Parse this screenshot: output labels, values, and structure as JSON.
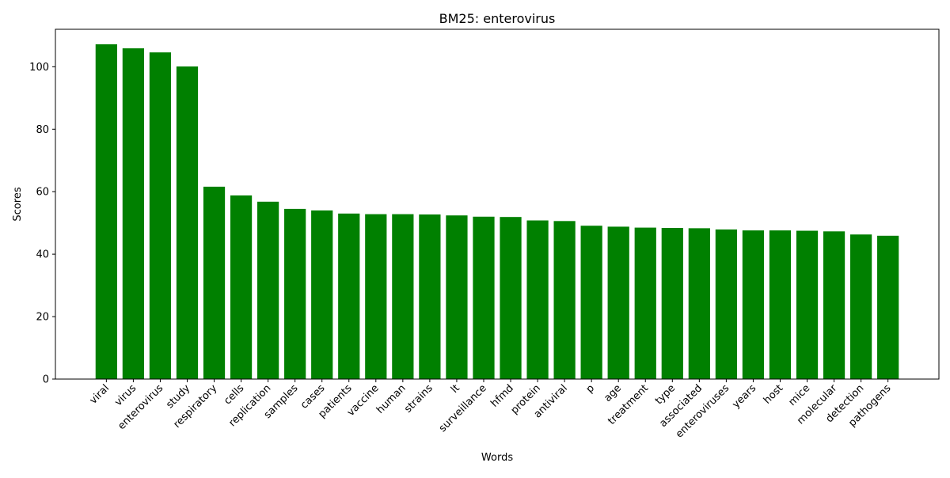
{
  "chart_data": {
    "type": "bar",
    "title": "BM25: enterovirus",
    "xlabel": "Words",
    "ylabel": "Scores",
    "ylim": [
      0,
      112
    ],
    "yticks": [
      0,
      20,
      40,
      60,
      80,
      100
    ],
    "categories": [
      "viral",
      "virus",
      "enterovirus",
      "study",
      "respiratory",
      "cells",
      "replication",
      "samples",
      "cases",
      "patients",
      "vaccine",
      "human",
      "strains",
      "lt",
      "surveillance",
      "hfmd",
      "protein",
      "antiviral",
      "p",
      "age",
      "treatment",
      "type",
      "associated",
      "enteroviruses",
      "years",
      "host",
      "mice",
      "molecular",
      "detection",
      "pathogens"
    ],
    "values": [
      107.2,
      105.9,
      104.6,
      100.1,
      61.6,
      58.8,
      56.8,
      54.5,
      54.0,
      53.0,
      52.8,
      52.8,
      52.7,
      52.4,
      52.0,
      51.9,
      50.8,
      50.6,
      49.1,
      48.8,
      48.5,
      48.4,
      48.3,
      47.9,
      47.6,
      47.6,
      47.5,
      47.3,
      46.3,
      45.9
    ],
    "bar_color": "#008000",
    "grid": false,
    "legend": "none"
  }
}
